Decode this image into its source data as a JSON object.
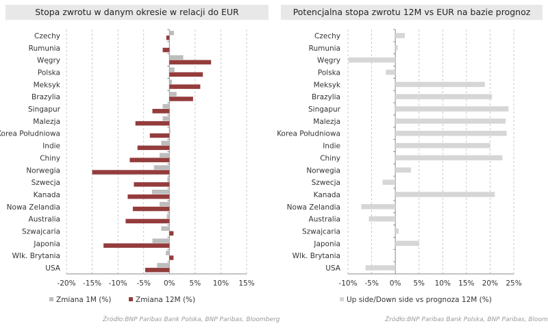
{
  "colors": {
    "m1": "#bdbdbd",
    "m12": "#943c3c",
    "forecast": "#d6d6d6",
    "grid": "#bbbbbb",
    "axis": "#888888"
  },
  "chart_data": [
    {
      "type": "bar",
      "orientation": "horizontal",
      "title": "Stopa zwrotu w danym okresie w relacji do EUR",
      "categories": [
        "Czechy",
        "Rumunia",
        "Węgry",
        "Polska",
        "Meksyk",
        "Brazylia",
        "Singapur",
        "Malezja",
        "Korea Południowa",
        "Indie",
        "Chiny",
        "Norwegia",
        "Szwecja",
        "Kanada",
        "Nowa Zelandia",
        "Australia",
        "Szwajcaria",
        "Japonia",
        "Wlk. Brytania",
        "USA"
      ],
      "series": [
        {
          "name": "Zmiana 1M (%)",
          "values": [
            0.9,
            0.0,
            2.7,
            1.0,
            0.5,
            1.4,
            -1.3,
            -1.3,
            0.2,
            -1.6,
            -1.9,
            -3.0,
            -0.4,
            -3.4,
            -1.9,
            -0.5,
            -1.6,
            -3.3,
            -0.7,
            -2.4
          ]
        },
        {
          "name": "Zmiana 12M (%)",
          "values": [
            -0.6,
            -1.3,
            8.1,
            6.5,
            6.0,
            4.6,
            -3.3,
            -6.6,
            -3.8,
            -6.2,
            -7.7,
            -15.0,
            -6.9,
            -8.1,
            -7.1,
            -8.5,
            0.8,
            -12.8,
            0.8,
            -4.7
          ]
        }
      ],
      "xlim": [
        -20,
        15
      ],
      "xticks": [
        -20,
        -15,
        -10,
        -5,
        0,
        5,
        10,
        15
      ],
      "tick_labels": [
        "-20%",
        "-15%",
        "-10%",
        "-5%",
        "0%",
        "5%",
        "10%",
        "15%"
      ],
      "grid": true,
      "legend": "bottom",
      "source": "Źródło:BNP Paribas Bank Polska, BNP Paribas, Bloomberg"
    },
    {
      "type": "bar",
      "orientation": "horizontal",
      "title": "Potencjalna stopa zwrotu 12M vs EUR na bazie prognoz",
      "categories": [
        "Czechy",
        "Rumunia",
        "Węgry",
        "Polska",
        "Meksyk",
        "Brazylia",
        "Singapur",
        "Malezja",
        "Korea Południowa",
        "Indie",
        "Chiny",
        "Norwegia",
        "Szwecja",
        "Kanada",
        "Nowa Zelandia",
        "Australia",
        "Szwajcaria",
        "Japonia",
        "Wlk. Brytania",
        "USA"
      ],
      "series": [
        {
          "name": "Up side/Down side vs prognoza 12M (%)",
          "values": [
            2.0,
            0.5,
            -9.9,
            -2.0,
            18.9,
            20.4,
            23.9,
            23.3,
            23.5,
            20.0,
            22.6,
            3.3,
            -2.7,
            21.0,
            -7.2,
            -5.6,
            0.7,
            5.0,
            0.0,
            -6.3
          ]
        }
      ],
      "xlim": [
        -10,
        25
      ],
      "xticks": [
        -10,
        -5,
        0,
        5,
        10,
        15,
        20,
        25
      ],
      "tick_labels": [
        "-10%",
        "-5%",
        "0%",
        "5%",
        "10%",
        "15%",
        "20%",
        "25%"
      ],
      "grid": true,
      "legend": "bottom",
      "source": "Źródło:BNP Paribas Bank Polska, BNP Paribas, Bloomberg"
    }
  ]
}
